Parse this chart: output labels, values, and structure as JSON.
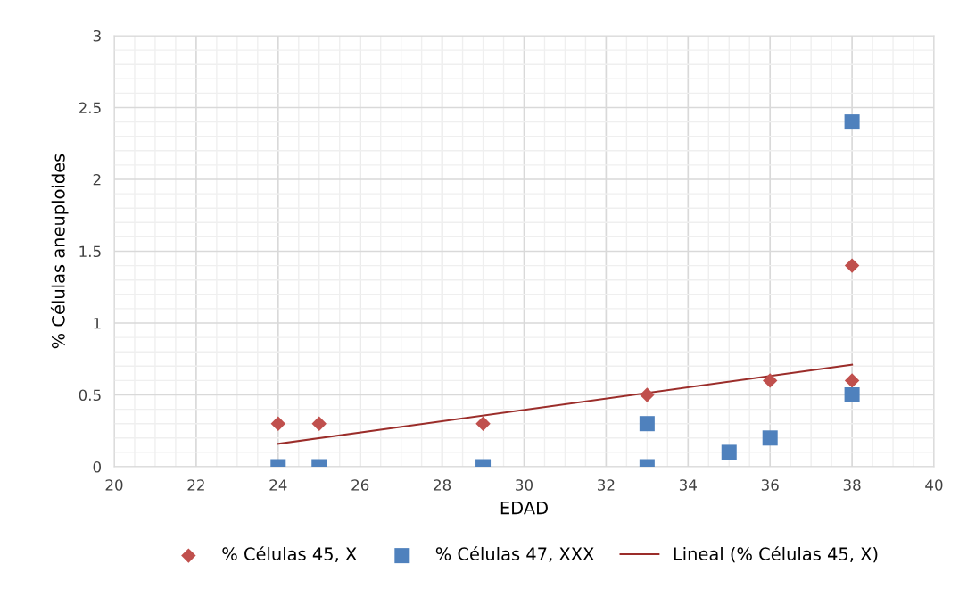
{
  "chart_data": {
    "type": "scatter",
    "xlabel": "EDAD",
    "ylabel": "% Células aneuploides",
    "xlim": [
      20,
      40
    ],
    "xticks": [
      20,
      22,
      24,
      26,
      28,
      30,
      32,
      34,
      36,
      38,
      40
    ],
    "ylim": [
      0,
      3
    ],
    "yticks": [
      0,
      0.5,
      1,
      1.5,
      2,
      2.5,
      3
    ],
    "grid": true,
    "legend": "bottom",
    "series": [
      {
        "name": "% Células 45, X",
        "color": "#c0504d",
        "marker": "diamond",
        "x": [
          24,
          25,
          29,
          33,
          36,
          38,
          38
        ],
        "values": [
          0.3,
          0.3,
          0.3,
          0.5,
          0.6,
          0.6,
          1.4
        ]
      },
      {
        "name": "% Células 47, XXX",
        "color": "#4f81bd",
        "marker": "square",
        "x": [
          24,
          25,
          29,
          33,
          33,
          35,
          36,
          38,
          38
        ],
        "values": [
          0,
          0,
          0,
          0.3,
          0,
          0.1,
          0.2,
          0.5,
          2.4
        ]
      },
      {
        "name": "Lineal (% Células 45, X)",
        "type": "line",
        "color": "#9b2d2a",
        "marker": "none",
        "x": [
          24,
          38
        ],
        "values": [
          0.16,
          0.71
        ]
      }
    ]
  }
}
